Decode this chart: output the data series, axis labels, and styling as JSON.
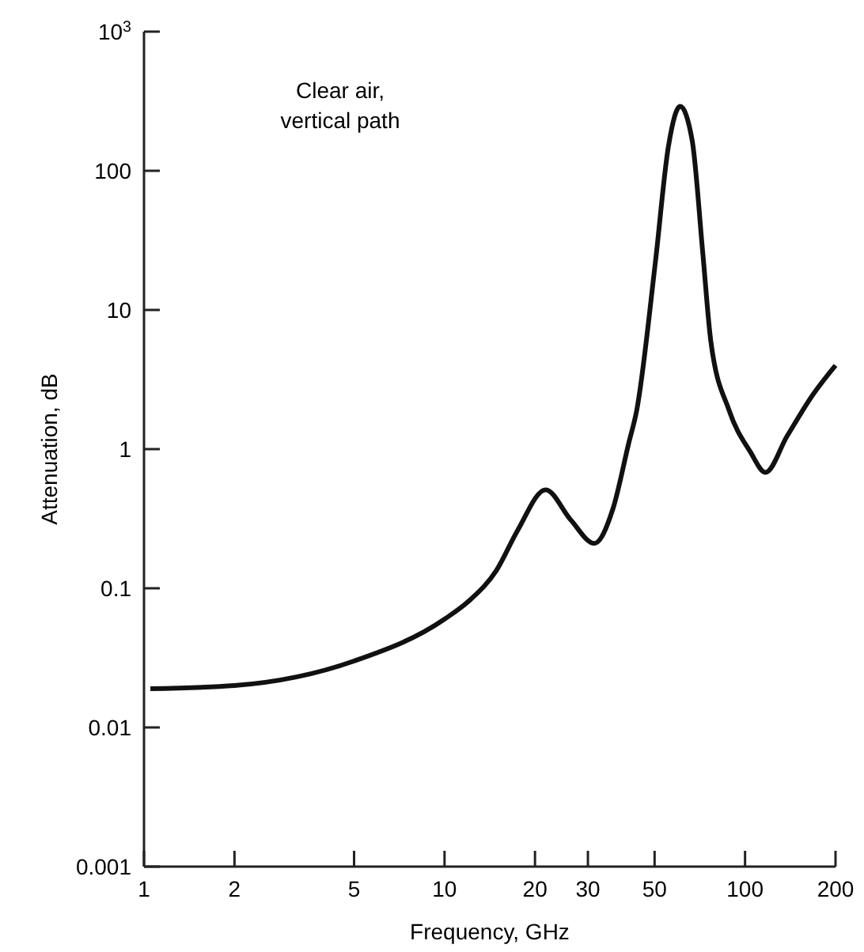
{
  "chart_data": {
    "type": "line",
    "xlabel": "Frequency, GHz",
    "ylabel": "Attenuation, dB",
    "annotations": [
      "Clear air,\nvertical path"
    ],
    "log": "xy",
    "grid": false,
    "marker": "none",
    "line_style": "solid",
    "xlim": [
      1,
      200
    ],
    "xticks": [
      1,
      2,
      5,
      10,
      20,
      30,
      50,
      100,
      200
    ],
    "ylim": [
      0.001,
      1000
    ],
    "yticks": [
      0.001,
      0.01,
      0.1,
      1,
      10,
      100,
      {
        "value": 1000,
        "label": "10$^{3}$"
      }
    ],
    "series": [
      {
        "color": "#111111",
        "x": [
          1.05,
          2,
          5,
          10,
          12.2,
          14.9,
          17.5,
          21.7,
          26.3,
          31.5,
          36.3,
          41,
          43.6,
          50.3,
          55.6,
          60.8,
          66.7,
          72.3,
          76.9,
          88.5,
          104,
          117,
          138,
          169,
          200
        ],
        "values": [
          0.019,
          0.02,
          0.03,
          0.06,
          0.083,
          0.135,
          0.26,
          0.51,
          0.31,
          0.21,
          0.37,
          1.1,
          1.9,
          22,
          150,
          290,
          165,
          26,
          6,
          1.9,
          0.96,
          0.68,
          1.24,
          2.5,
          4
        ]
      }
    ]
  }
}
